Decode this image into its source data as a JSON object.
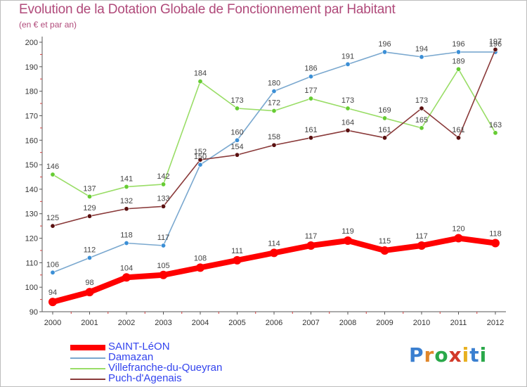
{
  "header": {
    "title": "Evolution de la Dotation Globale de Fonctionnement par Habitant",
    "subtitle": "(en € et par an)"
  },
  "brand": {
    "text": "Proxiti",
    "letters": [
      "P",
      "r",
      "o",
      "x",
      "i",
      "t",
      "i"
    ],
    "colors": [
      "#3a7fd0",
      "#e0862a",
      "#2aa84a",
      "#d23a2a",
      "#e8b020",
      "#3a7fd0",
      "#2aa84a"
    ]
  },
  "chart_data": {
    "type": "line",
    "title": "Evolution de la Dotation Globale de Fonctionnement par Habitant",
    "subtitle": "(en € et par an)",
    "xlabel": "",
    "ylabel": "",
    "x": [
      "2000",
      "2001",
      "2002",
      "2003",
      "2004",
      "2005",
      "2006",
      "2007",
      "2008",
      "2009",
      "2010",
      "2011",
      "2012"
    ],
    "ylim": [
      90,
      200
    ],
    "yticks": [
      90,
      100,
      110,
      120,
      130,
      140,
      150,
      160,
      170,
      180,
      190,
      200
    ],
    "grid": false,
    "legend_position": "bottom-left",
    "series": [
      {
        "name": "SAINT-LéON",
        "values": [
          94,
          98,
          104,
          105,
          108,
          111,
          114,
          117,
          119,
          115,
          117,
          120,
          118
        ],
        "labels": [
          "94",
          "98",
          "104",
          "105",
          "108",
          "111",
          "114",
          "117",
          "119",
          "115",
          "117",
          "120",
          "118"
        ],
        "color": "#ff0000",
        "marker_color": "#ff0000",
        "emphasis": true
      },
      {
        "name": "Damazan",
        "values": [
          106,
          112,
          118,
          117,
          150,
          160,
          180,
          186,
          191,
          196,
          194,
          196,
          196
        ],
        "labels": [
          "106",
          "112",
          "118",
          "117",
          "150",
          "160",
          "180",
          "186",
          "191",
          "196",
          "194",
          "196",
          "196"
        ],
        "color": "#7aa8cf",
        "marker_color": "#3b8fd6",
        "emphasis": false
      },
      {
        "name": "Villefranche-du-Queyran",
        "values": [
          146,
          137,
          141,
          142,
          184,
          173,
          172,
          177,
          173,
          169,
          165,
          189,
          163
        ],
        "labels": [
          "146",
          "137",
          "141",
          "142",
          "184",
          "173",
          "172",
          "177",
          "173",
          "169",
          "165",
          "189",
          "163"
        ],
        "color": "#99dd66",
        "marker_color": "#66cc33",
        "emphasis": false
      },
      {
        "name": "Puch-d'Agenais",
        "values": [
          125,
          129,
          132,
          133,
          152,
          154,
          158,
          161,
          164,
          161,
          173,
          161,
          197
        ],
        "labels": [
          "125",
          "129",
          "132",
          "133",
          "152",
          "154",
          "158",
          "161",
          "164",
          "161",
          "173",
          "161",
          "197"
        ],
        "color": "#8a3a3a",
        "marker_color": "#5a1010",
        "emphasis": false
      }
    ]
  }
}
